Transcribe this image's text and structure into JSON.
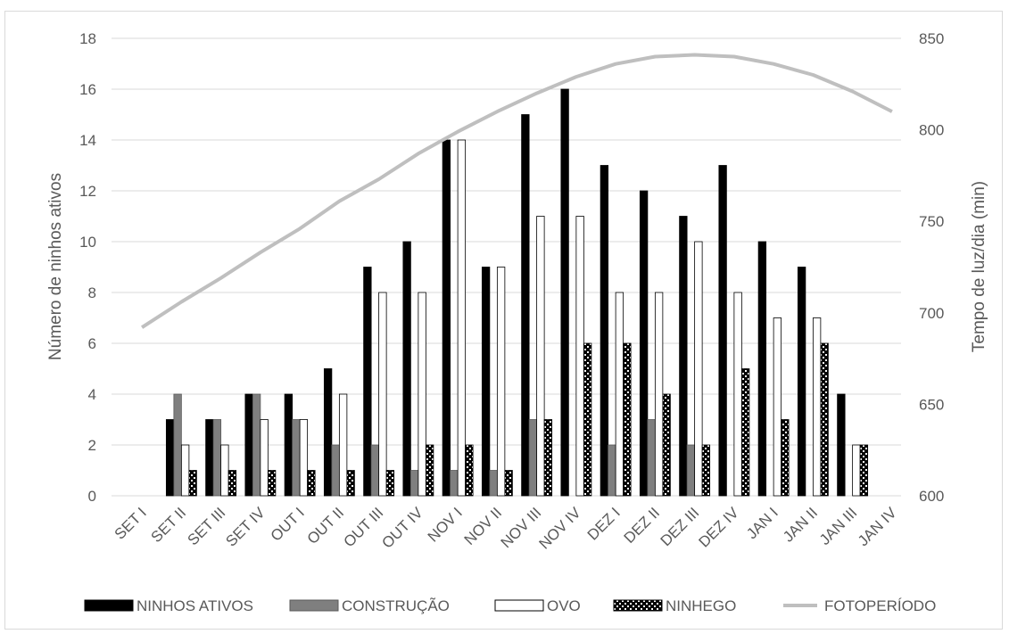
{
  "chart_data": {
    "type": "bar",
    "categories": [
      "SET I",
      "SET II",
      "SET III",
      "SET IV",
      "OUT I",
      "OUT II",
      "OUT III",
      "OUT IV",
      "NOV I",
      "NOV II",
      "NOV III",
      "NOV IV",
      "DEZ I",
      "DEZ II",
      "DEZ III",
      "DEZ IV",
      "JAN I",
      "JAN II",
      "JAN III",
      "JAN IV"
    ],
    "series": [
      {
        "name": "NINHOS ATIVOS",
        "kind": "bar",
        "pattern": "solid-black",
        "values": [
          0,
          3,
          3,
          4,
          4,
          5,
          9,
          10,
          14,
          9,
          15,
          16,
          13,
          12,
          11,
          13,
          10,
          9,
          4,
          0
        ]
      },
      {
        "name": "CONSTRUÇÃO",
        "kind": "bar",
        "pattern": "solid-gray",
        "values": [
          0,
          4,
          3,
          4,
          3,
          2,
          2,
          1,
          1,
          1,
          3,
          0,
          2,
          3,
          2,
          0,
          0,
          0,
          0,
          0
        ]
      },
      {
        "name": "OVO",
        "kind": "bar",
        "pattern": "white",
        "values": [
          0,
          2,
          2,
          3,
          3,
          4,
          8,
          8,
          14,
          9,
          11,
          11,
          8,
          8,
          10,
          8,
          7,
          7,
          2,
          0
        ]
      },
      {
        "name": "NINHEGO",
        "kind": "bar",
        "pattern": "checkered",
        "values": [
          0,
          1,
          1,
          1,
          1,
          1,
          1,
          2,
          2,
          1,
          3,
          6,
          6,
          4,
          2,
          5,
          3,
          6,
          2,
          0
        ]
      },
      {
        "name": "FOTOPERÍODO",
        "kind": "line",
        "axis": "right",
        "values": [
          692,
          706,
          719,
          733,
          746,
          761,
          773,
          787,
          799,
          810,
          820,
          829,
          836,
          840,
          841,
          840,
          836,
          830,
          821,
          810
        ]
      }
    ],
    "y_left": {
      "label": "Número de ninhos ativos",
      "ylim": [
        0,
        18
      ],
      "ticks": [
        0,
        2,
        4,
        6,
        8,
        10,
        12,
        14,
        16,
        18
      ]
    },
    "y_right": {
      "label": "Tempo de luz/dia (min)",
      "ylim": [
        600,
        850
      ],
      "ticks": [
        600,
        650,
        700,
        750,
        800,
        850
      ]
    },
    "grid": true,
    "legend_position": "bottom",
    "colors": {
      "ativos": "#000000",
      "construcao": "#7f7f7f",
      "ovo": "#ffffff",
      "line": "#bfbfbf",
      "grid": "#d9d9d9",
      "text": "#595959"
    }
  }
}
